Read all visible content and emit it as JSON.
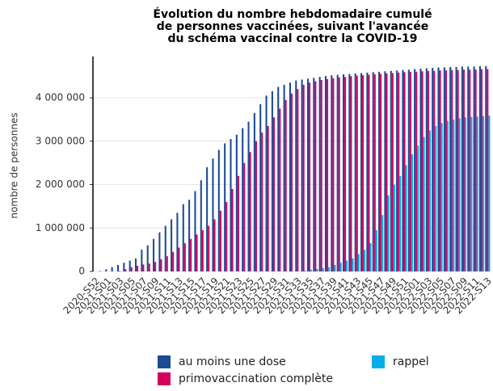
{
  "chart_data": {
    "type": "bar",
    "title": [
      "Évolution du nombre hebdomadaire cumulé",
      "de personnes vaccinées, suivant l'avancée",
      "du schéma vaccinal contre la COVID-19"
    ],
    "y_label": "nombre de personnes",
    "categories": [
      "2020-S52",
      null,
      "2021-S01",
      null,
      "2021-S03",
      null,
      "2021-S05",
      null,
      "2021-S07",
      null,
      "2021-S09",
      null,
      "2021-S11",
      null,
      "2021-S13",
      null,
      "2021-S15",
      null,
      "2021-S17",
      null,
      "2021-S19",
      null,
      "2021-S21",
      null,
      "2021-S23",
      null,
      "2021-S25",
      null,
      "2021-S27",
      null,
      "2021-S29",
      null,
      "2021-S31",
      null,
      "2021-S33",
      null,
      "2021-S35",
      null,
      "2021-S37",
      null,
      "2021-S39",
      null,
      "2021-S41",
      null,
      "2021-S43",
      null,
      "2021-S45",
      null,
      "2021-S47",
      null,
      "2021-S49",
      null,
      "2021-S51",
      null,
      "2022-S01",
      null,
      "2022-S03",
      null,
      "2022-S05",
      null,
      "2022-S07",
      null,
      "2022-S09",
      null,
      "2022-S11",
      null,
      "2022-S13"
    ],
    "series": [
      {
        "name": "au moins une dose",
        "color": "#1c4a94",
        "values": [
          0,
          10000,
          50000,
          100000,
          150000,
          200000,
          250000,
          300000,
          500000,
          600000,
          750000,
          900000,
          1050000,
          1200000,
          1350000,
          1550000,
          1650000,
          1850000,
          2100000,
          2400000,
          2600000,
          2800000,
          2950000,
          3050000,
          3150000,
          3300000,
          3450000,
          3650000,
          3850000,
          4050000,
          4150000,
          4250000,
          4300000,
          4350000,
          4400000,
          4420000,
          4440000,
          4460000,
          4480000,
          4500000,
          4520000,
          4530000,
          4540000,
          4550000,
          4560000,
          4570000,
          4580000,
          4590000,
          4600000,
          4610000,
          4620000,
          4630000,
          4640000,
          4650000,
          4660000,
          4670000,
          4680000,
          4690000,
          4700000,
          4700000,
          4710000,
          4710000,
          4720000,
          4720000,
          4720000,
          4730000,
          4730000
        ]
      },
      {
        "name": "primovaccination complète",
        "color": "#d4005e",
        "values": [
          0,
          0,
          0,
          0,
          10000,
          50000,
          100000,
          130000,
          160000,
          180000,
          220000,
          280000,
          350000,
          450000,
          550000,
          650000,
          750000,
          850000,
          950000,
          1050000,
          1200000,
          1400000,
          1600000,
          1900000,
          2200000,
          2500000,
          2750000,
          3000000,
          3200000,
          3350000,
          3550000,
          3750000,
          3950000,
          4100000,
          4200000,
          4300000,
          4350000,
          4380000,
          4410000,
          4430000,
          4450000,
          4470000,
          4480000,
          4500000,
          4510000,
          4520000,
          4530000,
          4540000,
          4550000,
          4560000,
          4570000,
          4580000,
          4590000,
          4600000,
          4600000,
          4610000,
          4620000,
          4620000,
          4630000,
          4630000,
          4640000,
          4640000,
          4650000,
          4650000,
          4650000,
          4660000,
          4660000
        ]
      },
      {
        "name": "rappel",
        "color": "#00aee8",
        "values": [
          0,
          0,
          0,
          0,
          0,
          0,
          0,
          0,
          0,
          0,
          0,
          0,
          0,
          0,
          0,
          0,
          0,
          0,
          0,
          0,
          0,
          0,
          0,
          0,
          0,
          0,
          0,
          0,
          0,
          0,
          0,
          0,
          0,
          0,
          0,
          20000,
          40000,
          60000,
          80000,
          100000,
          150000,
          200000,
          250000,
          300000,
          400000,
          500000,
          650000,
          950000,
          1300000,
          1750000,
          2000000,
          2200000,
          2450000,
          2700000,
          2900000,
          3100000,
          3250000,
          3350000,
          3420000,
          3470000,
          3500000,
          3530000,
          3550000,
          3560000,
          3570000,
          3580000,
          3590000
        ]
      }
    ],
    "ylim": [
      0,
      4950000
    ],
    "yticks": [
      0,
      {
        "value": 1000000,
        "label": "1 000 000"
      },
      {
        "value": 2000000,
        "label": "2 000 000"
      },
      {
        "value": 3000000,
        "label": "3 000 000"
      },
      {
        "value": 4000000,
        "label": "4 000 000"
      }
    ],
    "grid": true
  }
}
